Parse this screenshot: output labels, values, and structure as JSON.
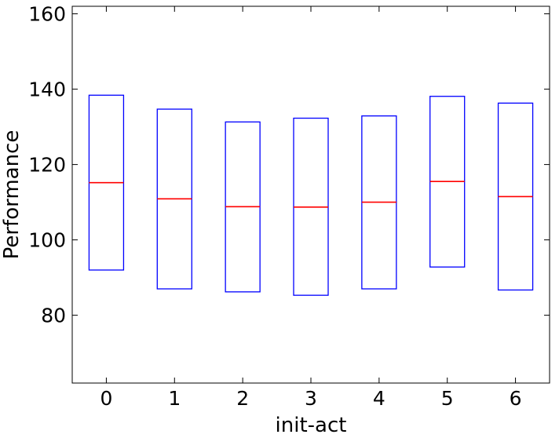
{
  "chart_data": {
    "type": "box",
    "xlabel": "init-act",
    "ylabel": "Performance",
    "categories": [
      "0",
      "1",
      "2",
      "3",
      "4",
      "5",
      "6"
    ],
    "boxes": [
      {
        "q1": 92.0,
        "median": 115.2,
        "q3": 138.4
      },
      {
        "q1": 87.0,
        "median": 110.9,
        "q3": 134.7
      },
      {
        "q1": 86.2,
        "median": 108.8,
        "q3": 131.3
      },
      {
        "q1": 85.3,
        "median": 108.7,
        "q3": 132.3
      },
      {
        "q1": 87.0,
        "median": 110.0,
        "q3": 132.9
      },
      {
        "q1": 92.8,
        "median": 115.5,
        "q3": 138.1
      },
      {
        "q1": 86.7,
        "median": 111.5,
        "q3": 136.3
      }
    ],
    "ylim": [
      62,
      162
    ],
    "yticks": [
      80,
      100,
      120,
      140,
      160
    ],
    "box_color": "#0000ff",
    "median_color": "#ff0000",
    "grid": false
  }
}
